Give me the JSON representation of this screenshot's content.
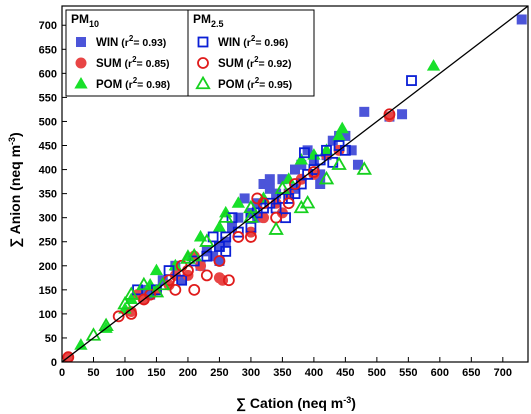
{
  "chart_data": {
    "type": "scatter",
    "xlabel": "∑ Cation (neq m",
    "xlabel_sup": "-3",
    "xlabel_end": ")",
    "ylabel": "∑ Anion (neq m",
    "ylabel_sup": "-3",
    "ylabel_end": ")",
    "xlim": [
      0,
      740
    ],
    "ylim": [
      0,
      740
    ],
    "xticks": [
      0,
      50,
      100,
      150,
      200,
      250,
      300,
      350,
      400,
      450,
      500,
      550,
      600,
      650,
      700
    ],
    "yticks": [
      0,
      50,
      100,
      150,
      200,
      250,
      300,
      350,
      400,
      450,
      500,
      550,
      600,
      650,
      700
    ],
    "grid": false,
    "fit_line": {
      "x": [
        0,
        740
      ],
      "y": [
        0,
        740
      ]
    },
    "legend": [
      {
        "title": "PM",
        "title_sub": "10",
        "entries": [
          {
            "series": "WIN",
            "label": "WIN",
            "r2_text": " (r",
            "r2_sup": "2",
            "r2_value": "= 0.93)"
          },
          {
            "series": "SUM",
            "label": "SUM",
            "r2_text": " (r",
            "r2_sup": "2",
            "r2_value": "= 0.85)"
          },
          {
            "series": "POM",
            "label": "POM",
            "r2_text": " (r",
            "r2_sup": "2",
            "r2_value": "= 0.98)"
          }
        ]
      },
      {
        "title": "PM",
        "title_sub": "2.5",
        "entries": [
          {
            "series": "WIN",
            "label": "WIN",
            "r2_text": " (r",
            "r2_sup": "2",
            "r2_value": "= 0.96)"
          },
          {
            "series": "SUM",
            "label": "SUM",
            "r2_text": " (r",
            "r2_sup": "2",
            "r2_value": "= 0.92)"
          },
          {
            "series": "POM",
            "label": "POM",
            "r2_text": " (r",
            "r2_sup": "2",
            "r2_value": "= 0.95)"
          }
        ]
      }
    ],
    "series": [
      {
        "group": "PM10",
        "season": "WIN",
        "marker": "square",
        "filled": true,
        "color": "#4c55d9",
        "points": [
          [
            130,
            150
          ],
          [
            140,
            140
          ],
          [
            160,
            170
          ],
          [
            180,
            200
          ],
          [
            190,
            170
          ],
          [
            220,
            200
          ],
          [
            230,
            230
          ],
          [
            240,
            220
          ],
          [
            250,
            240
          ],
          [
            260,
            250
          ],
          [
            270,
            280
          ],
          [
            280,
            300
          ],
          [
            290,
            340
          ],
          [
            300,
            310
          ],
          [
            310,
            330
          ],
          [
            320,
            370
          ],
          [
            330,
            360
          ],
          [
            340,
            350
          ],
          [
            350,
            380
          ],
          [
            360,
            350
          ],
          [
            370,
            400
          ],
          [
            380,
            410
          ],
          [
            390,
            440
          ],
          [
            400,
            420
          ],
          [
            410,
            390
          ],
          [
            420,
            430
          ],
          [
            430,
            460
          ],
          [
            440,
            470
          ],
          [
            450,
            470
          ],
          [
            460,
            440
          ],
          [
            470,
            410
          ],
          [
            480,
            520
          ],
          [
            520,
            510
          ],
          [
            540,
            515
          ],
          [
            730,
            712
          ],
          [
            370,
            360
          ],
          [
            410,
            370
          ],
          [
            330,
            380
          ],
          [
            250,
            210
          ],
          [
            310,
            300
          ]
        ]
      },
      {
        "group": "PM10",
        "season": "SUM",
        "marker": "circle",
        "filled": true,
        "color": "#e84545",
        "points": [
          [
            10,
            10
          ],
          [
            110,
            105
          ],
          [
            120,
            140
          ],
          [
            130,
            130
          ],
          [
            150,
            150
          ],
          [
            170,
            160
          ],
          [
            180,
            180
          ],
          [
            200,
            180
          ],
          [
            210,
            220
          ],
          [
            220,
            200
          ],
          [
            250,
            175
          ],
          [
            255,
            170
          ],
          [
            300,
            270
          ],
          [
            320,
            300
          ],
          [
            340,
            330
          ],
          [
            350,
            310
          ],
          [
            360,
            350
          ],
          [
            380,
            380
          ],
          [
            400,
            390
          ],
          [
            420,
            430
          ],
          [
            440,
            440
          ],
          [
            520,
            510
          ]
        ]
      },
      {
        "group": "PM10",
        "season": "POM",
        "marker": "triangle",
        "filled": true,
        "color": "#18e02a",
        "points": [
          [
            30,
            35
          ],
          [
            70,
            70
          ],
          [
            100,
            110
          ],
          [
            110,
            130
          ],
          [
            140,
            160
          ],
          [
            150,
            190
          ],
          [
            180,
            200
          ],
          [
            200,
            220
          ],
          [
            220,
            260
          ],
          [
            250,
            280
          ],
          [
            260,
            310
          ],
          [
            280,
            330
          ],
          [
            320,
            340
          ],
          [
            360,
            380
          ],
          [
            380,
            420
          ],
          [
            400,
            430
          ],
          [
            420,
            440
          ],
          [
            440,
            470
          ],
          [
            445,
            485
          ],
          [
            590,
            615
          ]
        ]
      },
      {
        "group": "PM2.5",
        "season": "WIN",
        "marker": "square",
        "filled": false,
        "color": "#0a1fd6",
        "points": [
          [
            120,
            150
          ],
          [
            150,
            150
          ],
          [
            170,
            190
          ],
          [
            190,
            170
          ],
          [
            210,
            210
          ],
          [
            230,
            220
          ],
          [
            250,
            240
          ],
          [
            260,
            260
          ],
          [
            270,
            300
          ],
          [
            280,
            270
          ],
          [
            300,
            300
          ],
          [
            310,
            310
          ],
          [
            320,
            320
          ],
          [
            330,
            330
          ],
          [
            340,
            320
          ],
          [
            350,
            340
          ],
          [
            355,
            300
          ],
          [
            360,
            340
          ],
          [
            370,
            350
          ],
          [
            380,
            370
          ],
          [
            385,
            435
          ],
          [
            390,
            390
          ],
          [
            400,
            400
          ],
          [
            410,
            420
          ],
          [
            420,
            440
          ],
          [
            430,
            415
          ],
          [
            440,
            450
          ],
          [
            450,
            440
          ],
          [
            555,
            585
          ],
          [
            260,
            230
          ],
          [
            300,
            280
          ],
          [
            240,
            260
          ]
        ]
      },
      {
        "group": "PM2.5",
        "season": "SUM",
        "marker": "circle",
        "filled": false,
        "color": "#e01b1b",
        "points": [
          [
            10,
            10
          ],
          [
            90,
            95
          ],
          [
            110,
            100
          ],
          [
            130,
            130
          ],
          [
            140,
            140
          ],
          [
            170,
            170
          ],
          [
            190,
            200
          ],
          [
            200,
            190
          ],
          [
            210,
            150
          ],
          [
            230,
            180
          ],
          [
            250,
            210
          ],
          [
            265,
            170
          ],
          [
            280,
            260
          ],
          [
            300,
            260
          ],
          [
            310,
            340
          ],
          [
            320,
            330
          ],
          [
            340,
            300
          ],
          [
            360,
            330
          ],
          [
            370,
            370
          ],
          [
            400,
            395
          ],
          [
            520,
            515
          ],
          [
            180,
            150
          ]
        ]
      },
      {
        "group": "PM2.5",
        "season": "POM",
        "marker": "triangle",
        "filled": false,
        "color": "#16d11f",
        "points": [
          [
            50,
            55
          ],
          [
            70,
            75
          ],
          [
            100,
            120
          ],
          [
            110,
            140
          ],
          [
            130,
            160
          ],
          [
            150,
            145
          ],
          [
            160,
            160
          ],
          [
            200,
            215
          ],
          [
            210,
            220
          ],
          [
            230,
            250
          ],
          [
            260,
            300
          ],
          [
            300,
            320
          ],
          [
            340,
            275
          ],
          [
            380,
            320
          ],
          [
            390,
            330
          ],
          [
            420,
            380
          ],
          [
            440,
            410
          ],
          [
            480,
            400
          ],
          [
            300,
            300
          ],
          [
            350,
            360
          ]
        ]
      }
    ]
  }
}
